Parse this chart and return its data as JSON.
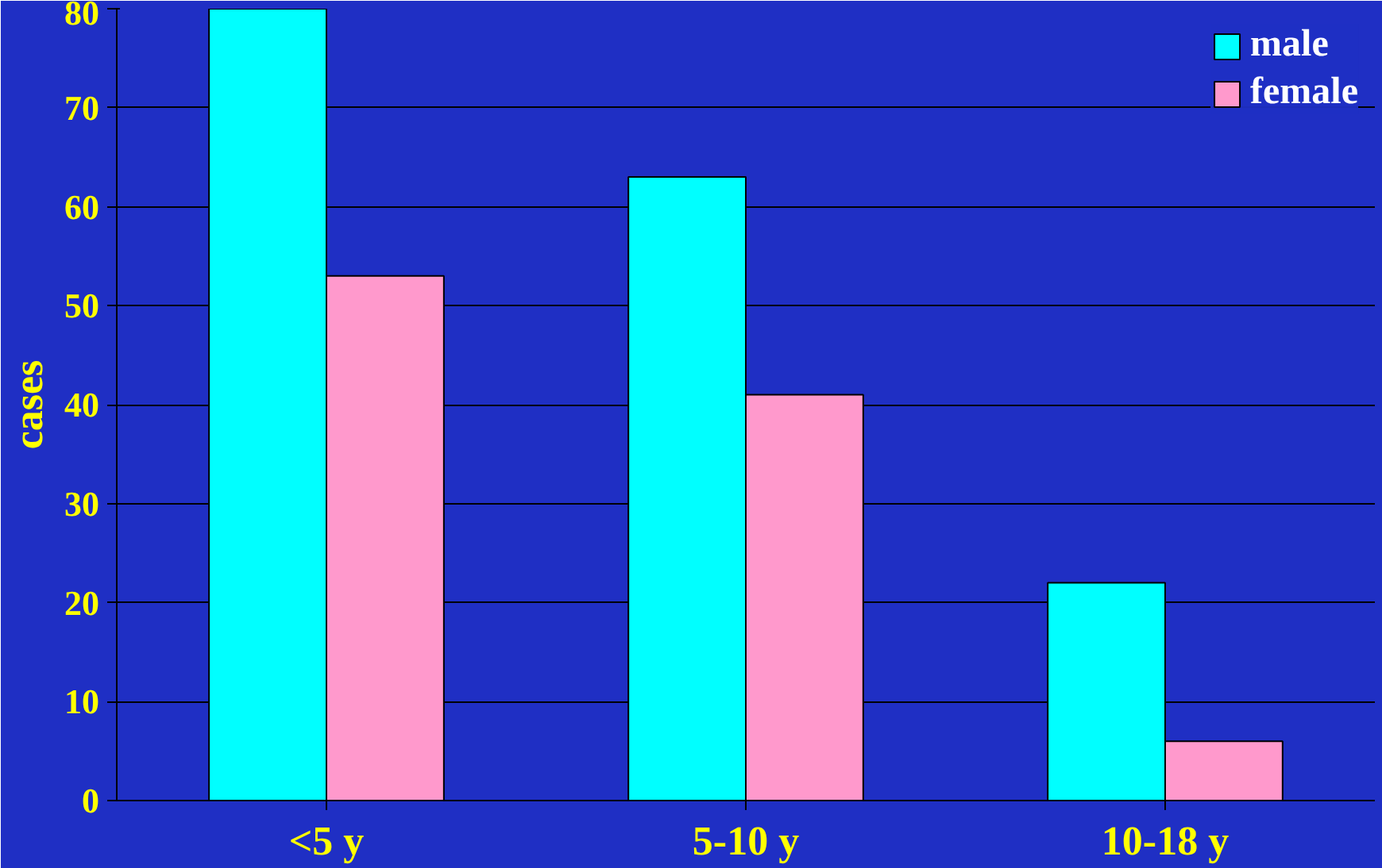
{
  "chart_data": {
    "type": "bar",
    "ylabel": "cases",
    "categories": [
      "<5 y",
      "5-10 y",
      "10-18 y"
    ],
    "series": [
      {
        "name": "male",
        "color": "#00ffff",
        "values": [
          80,
          63,
          22
        ]
      },
      {
        "name": "female",
        "color": "#ff99cc",
        "values": [
          53,
          41,
          6
        ]
      }
    ],
    "ylim": [
      0,
      80
    ],
    "yticks": [
      0,
      10,
      20,
      30,
      40,
      50,
      60,
      70,
      80
    ],
    "grid": "y",
    "legend": "top right"
  }
}
